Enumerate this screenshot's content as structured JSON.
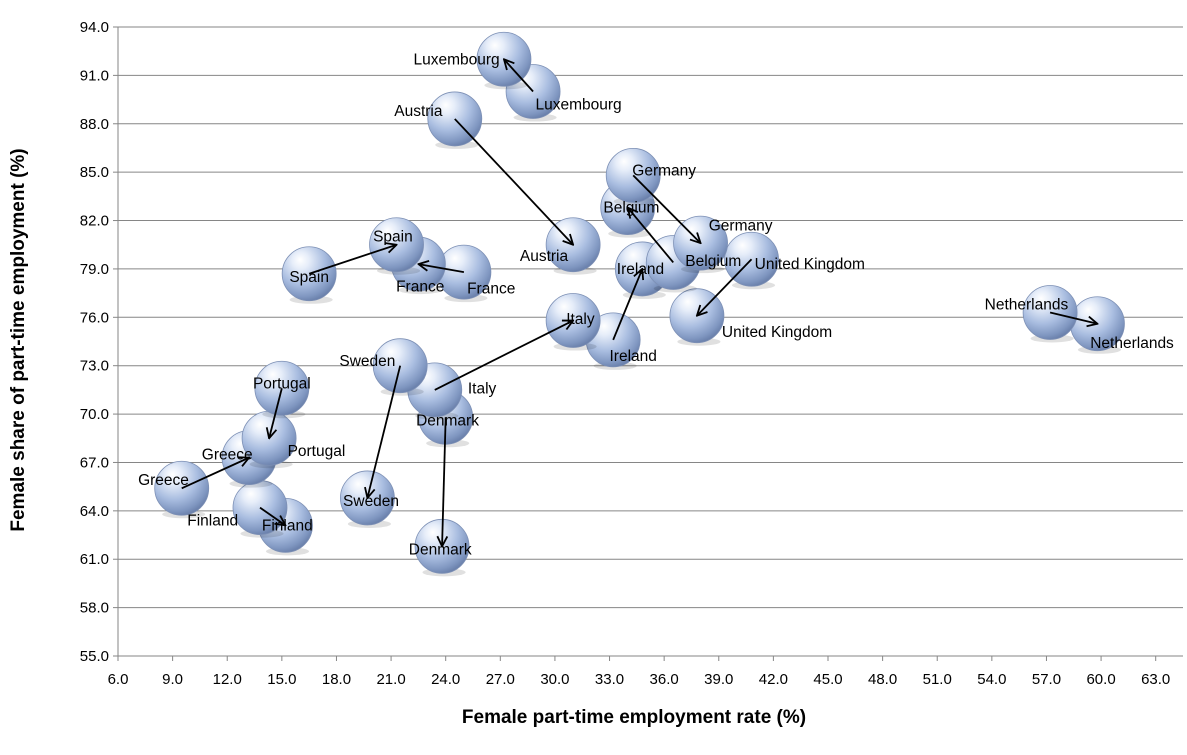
{
  "chart_data": {
    "type": "scatter",
    "subtype": "bubble-with-arrows",
    "title": "",
    "xlabel": "Female part-time employment rate (%)",
    "ylabel": "Female share of part-time employment (%)",
    "xlim": [
      6.0,
      64.5
    ],
    "ylim": [
      55.0,
      94.0
    ],
    "x_ticks": [
      "6.0",
      "9.0",
      "12.0",
      "15.0",
      "18.0",
      "21.0",
      "24.0",
      "27.0",
      "30.0",
      "33.0",
      "36.0",
      "39.0",
      "42.0",
      "45.0",
      "48.0",
      "51.0",
      "54.0",
      "57.0",
      "60.0",
      "63.0"
    ],
    "y_ticks": [
      "55.0",
      "58.0",
      "61.0",
      "64.0",
      "67.0",
      "70.0",
      "73.0",
      "76.0",
      "79.0",
      "82.0",
      "85.0",
      "88.0",
      "91.0",
      "94.0"
    ],
    "grid": "horizontal",
    "marker_color": "#9fb4d8",
    "arrow_color": "#000000",
    "arrows": [
      {
        "country": "Luxembourg",
        "from": {
          "x": 28.8,
          "y": 90.0
        },
        "to": {
          "x": 27.2,
          "y": 92.0
        }
      },
      {
        "country": "Austria",
        "from": {
          "x": 24.5,
          "y": 88.3
        },
        "to": {
          "x": 31.0,
          "y": 80.5
        }
      },
      {
        "country": "Germany",
        "from": {
          "x": 34.3,
          "y": 84.8
        },
        "to": {
          "x": 38.0,
          "y": 80.6
        }
      },
      {
        "country": "Belgium",
        "from": {
          "x": 36.5,
          "y": 79.4
        },
        "to": {
          "x": 34.0,
          "y": 82.8
        }
      },
      {
        "country": "United Kingdom",
        "from": {
          "x": 40.8,
          "y": 79.6
        },
        "to": {
          "x": 37.8,
          "y": 76.1
        }
      },
      {
        "country": "Ireland",
        "from": {
          "x": 33.2,
          "y": 74.6
        },
        "to": {
          "x": 34.8,
          "y": 79.0
        }
      },
      {
        "country": "Spain",
        "from": {
          "x": 16.5,
          "y": 78.7
        },
        "to": {
          "x": 21.3,
          "y": 80.5
        }
      },
      {
        "country": "France",
        "from": {
          "x": 25.0,
          "y": 78.8
        },
        "to": {
          "x": 22.5,
          "y": 79.3
        }
      },
      {
        "country": "Italy",
        "from": {
          "x": 23.4,
          "y": 71.5
        },
        "to": {
          "x": 31.0,
          "y": 75.8
        }
      },
      {
        "country": "Netherlands",
        "from": {
          "x": 57.2,
          "y": 76.3
        },
        "to": {
          "x": 59.8,
          "y": 75.6
        }
      },
      {
        "country": "Sweden",
        "from": {
          "x": 21.5,
          "y": 73.0
        },
        "to": {
          "x": 19.7,
          "y": 64.8
        }
      },
      {
        "country": "Denmark",
        "from": {
          "x": 24.0,
          "y": 69.8
        },
        "to": {
          "x": 23.8,
          "y": 61.8
        }
      },
      {
        "country": "Portugal",
        "from": {
          "x": 15.0,
          "y": 71.6
        },
        "to": {
          "x": 14.3,
          "y": 68.5
        }
      },
      {
        "country": "Greece",
        "from": {
          "x": 9.5,
          "y": 65.4
        },
        "to": {
          "x": 13.2,
          "y": 67.3
        }
      },
      {
        "country": "Finland",
        "from": {
          "x": 13.8,
          "y": 64.2
        },
        "to": {
          "x": 15.2,
          "y": 63.1
        }
      }
    ],
    "point_labels": [
      {
        "text": "Luxembourg",
        "x": 24.6,
        "y": 92.0
      },
      {
        "text": "Luxembourg",
        "x": 31.3,
        "y": 89.2
      },
      {
        "text": "Austria",
        "x": 22.5,
        "y": 88.8
      },
      {
        "text": "Austria",
        "x": 29.4,
        "y": 79.8
      },
      {
        "text": "Germany",
        "x": 36.0,
        "y": 85.1
      },
      {
        "text": "Germany",
        "x": 40.2,
        "y": 81.7
      },
      {
        "text": "Belgium",
        "x": 34.2,
        "y": 82.8
      },
      {
        "text": "Belgium",
        "x": 38.7,
        "y": 79.5
      },
      {
        "text": "United Kingdom",
        "x": 44.0,
        "y": 79.3
      },
      {
        "text": "United Kingdom",
        "x": 42.2,
        "y": 75.1
      },
      {
        "text": "Ireland",
        "x": 34.7,
        "y": 79.0
      },
      {
        "text": "Ireland",
        "x": 34.3,
        "y": 73.6
      },
      {
        "text": "Spain",
        "x": 16.5,
        "y": 78.5
      },
      {
        "text": "Spain",
        "x": 21.1,
        "y": 81.0
      },
      {
        "text": "France",
        "x": 22.6,
        "y": 77.9
      },
      {
        "text": "France",
        "x": 26.5,
        "y": 77.8
      },
      {
        "text": "Italy",
        "x": 31.4,
        "y": 75.9
      },
      {
        "text": "Italy",
        "x": 26.0,
        "y": 71.6
      },
      {
        "text": "Netherlands",
        "x": 55.9,
        "y": 76.8
      },
      {
        "text": "Netherlands",
        "x": 61.7,
        "y": 74.4
      },
      {
        "text": "Sweden",
        "x": 19.7,
        "y": 73.3
      },
      {
        "text": "Sweden",
        "x": 19.9,
        "y": 64.6
      },
      {
        "text": "Denmark",
        "x": 24.1,
        "y": 69.6
      },
      {
        "text": "Denmark",
        "x": 23.7,
        "y": 61.6
      },
      {
        "text": "Portugal",
        "x": 15.0,
        "y": 71.9
      },
      {
        "text": "Portugal",
        "x": 16.9,
        "y": 67.7
      },
      {
        "text": "Greece",
        "x": 12.0,
        "y": 67.5
      },
      {
        "text": "Greece",
        "x": 8.5,
        "y": 65.9
      },
      {
        "text": "Finland",
        "x": 11.2,
        "y": 63.4
      },
      {
        "text": "Finland",
        "x": 15.3,
        "y": 63.1
      }
    ]
  }
}
